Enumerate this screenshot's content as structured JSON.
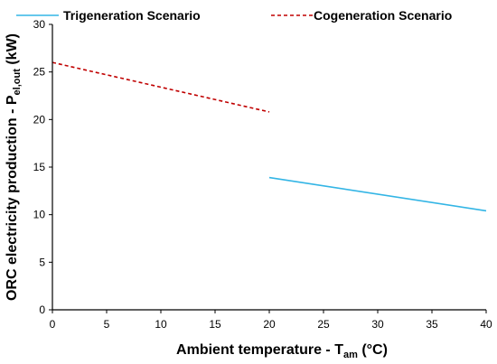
{
  "chart_data": {
    "type": "line",
    "xlabel": {
      "main": "Ambient temperature - T",
      "sub": "am",
      "unit": " (°C)"
    },
    "ylabel": {
      "main": "ORC electricity production - P",
      "sub": "el,out",
      "unit": " (kW)"
    },
    "xlim": [
      0,
      40
    ],
    "ylim": [
      0,
      30
    ],
    "xticks": [
      0,
      5,
      10,
      15,
      20,
      25,
      30,
      35,
      40
    ],
    "yticks": [
      0,
      5,
      10,
      15,
      20,
      25,
      30
    ],
    "grid": false,
    "legend_position": "top",
    "series": [
      {
        "name": "Trigeneration Scenario",
        "color": "#33b5e5",
        "style": "solid",
        "points": [
          [
            20,
            13.9
          ],
          [
            40,
            10.4
          ]
        ]
      },
      {
        "name": "Cogeneration Scenario",
        "color": "#c00000",
        "style": "dashed",
        "points": [
          [
            0,
            26.0
          ],
          [
            20,
            20.8
          ]
        ]
      }
    ]
  }
}
